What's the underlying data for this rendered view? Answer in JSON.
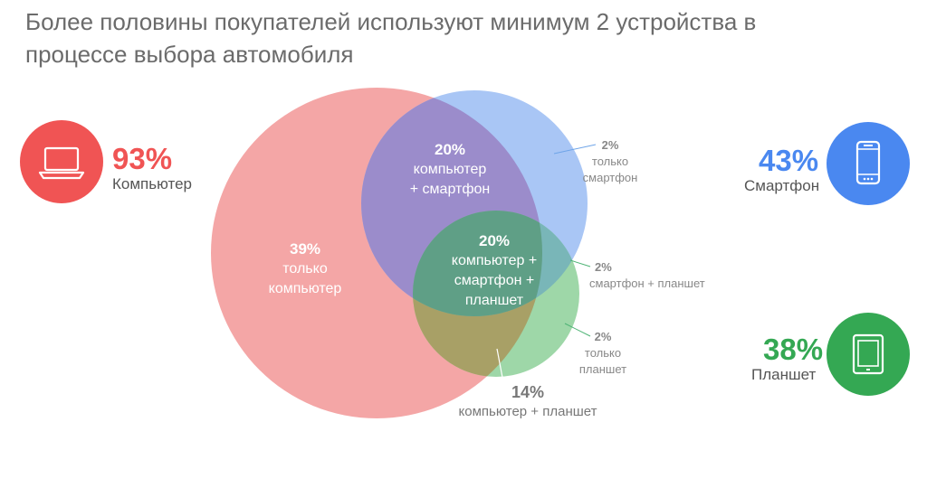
{
  "title": {
    "line1": "Более половины покупателей используют минимум 2 устройства в",
    "line2": "процессе выбора автомобиля"
  },
  "colors": {
    "computer": "#f05454",
    "smartphone": "#4a88f0",
    "tablet": "#34a853",
    "computer_circle": "#f4a6a6",
    "smartphone_circle": "#a9c6f5",
    "tablet_circle": "#9ed7a8"
  },
  "devices": {
    "computer": {
      "percent": "93%",
      "label": "Компьютер",
      "icon": "laptop-icon"
    },
    "smartphone": {
      "percent": "43%",
      "label": "Смартфон",
      "icon": "smartphone-icon"
    },
    "tablet": {
      "percent": "38%",
      "label": "Планшет",
      "icon": "tablet-icon"
    }
  },
  "segments": {
    "only_computer": {
      "percent": "39%",
      "line1": "только",
      "line2": "компьютер"
    },
    "computer_smartphone": {
      "percent": "20%",
      "line1": "компьютер",
      "line2": "+ смартфон"
    },
    "all_three": {
      "percent": "20%",
      "line1": "компьютер +",
      "line2": "смартфон +",
      "line3": "планшет"
    },
    "only_smartphone": {
      "percent": "2%",
      "line1": "только",
      "line2": "смартфон"
    },
    "smartphone_tablet": {
      "percent": "2%",
      "line1": "смартфон + планшет"
    },
    "only_tablet": {
      "percent": "2%",
      "line1": "только",
      "line2": "планшет"
    },
    "computer_tablet": {
      "percent": "14%",
      "line1": "компьютер + планшет"
    }
  }
}
